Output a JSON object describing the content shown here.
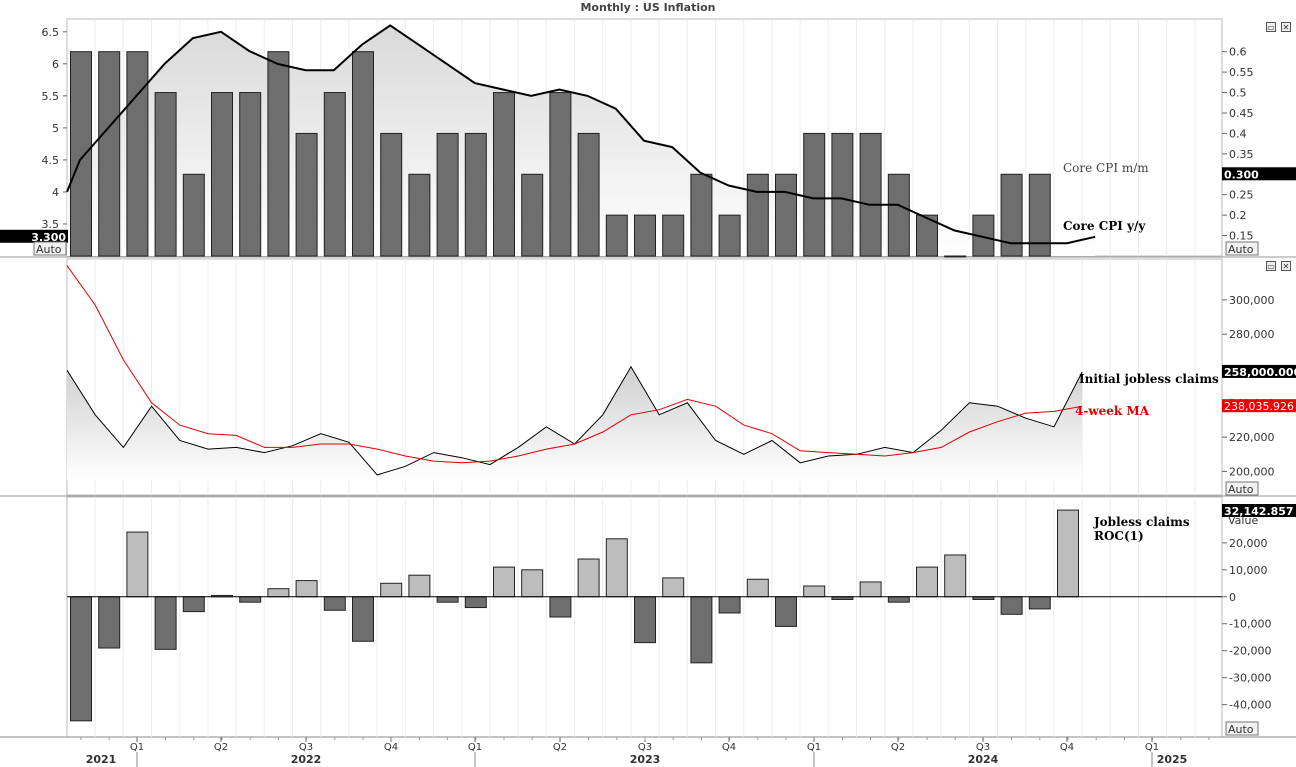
{
  "title": "Monthly : US Inflation",
  "colors": {
    "bar_dark": "#6e6e6e",
    "bar_light": "#bdbdbd",
    "line": "#000000",
    "ma": "#e00000",
    "tag": "#000000",
    "tag_red": "#ee0000"
  },
  "panels": {
    "cpi": {
      "left_axis_ticks": [
        "6.5",
        "6",
        "5.5",
        "5",
        "4.5",
        "4",
        "3.5"
      ],
      "right_axis_ticks": [
        "0.6",
        "0.55",
        "0.5",
        "0.45",
        "0.4",
        "0.35",
        "0.3",
        "0.25",
        "0.2",
        "0.15"
      ],
      "left_tag": "3.300",
      "right_tag": "0.300",
      "auto_left": "Auto",
      "auto_right": "Auto",
      "legend_mm": "Core CPI m/m",
      "legend_yy": "Core CPI y/y"
    },
    "claims": {
      "axis_ticks": [
        "300,000",
        "280,000",
        "240,000",
        "220,000",
        "200,000"
      ],
      "tag_claims": "258,000.000",
      "tag_ma": "238,035.926",
      "auto": "Auto",
      "legend_claims": "Initial jobless claims",
      "legend_ma": "4-week MA"
    },
    "roc": {
      "axis_ticks": [
        "20,000",
        "10,000",
        "0",
        "-10,000",
        "-20,000",
        "-30,000",
        "-40,000"
      ],
      "tag": "32,142.857",
      "value_label": "Value",
      "auto": "Auto",
      "legend_line1": "Jobless claims",
      "legend_line2": "ROC(1)"
    }
  },
  "x_axis": {
    "quarters": [
      "Q1",
      "Q2",
      "Q3",
      "Q4",
      "Q1",
      "Q2",
      "Q3",
      "Q4",
      "Q1",
      "Q2",
      "Q3",
      "Q4",
      "Q1"
    ],
    "years": [
      "2021",
      "2022",
      "2023",
      "2024",
      "2025"
    ]
  },
  "chart_data": [
    {
      "type": "bar",
      "title": "Monthly : US Inflation",
      "series": [
        {
          "name": "Core CPI m/m",
          "axis": "right",
          "values": [
            0.6,
            0.6,
            0.6,
            0.5,
            0.3,
            0.5,
            0.5,
            0.6,
            0.4,
            0.5,
            0.6,
            0.4,
            0.3,
            0.4,
            0.4,
            0.5,
            0.3,
            0.5,
            0.4,
            0.2,
            0.2,
            0.2,
            0.3,
            0.2,
            0.3,
            0.3,
            0.4,
            0.4,
            0.4,
            0.3,
            0.2,
            0.1,
            0.2,
            0.3,
            0.3
          ]
        },
        {
          "name": "Core CPI y/y",
          "type": "line",
          "axis": "left",
          "values": [
            4.0,
            4.5,
            5.0,
            5.5,
            6.0,
            6.4,
            6.5,
            6.2,
            6.0,
            5.9,
            5.9,
            6.3,
            6.6,
            6.3,
            6.0,
            5.7,
            5.6,
            5.5,
            5.6,
            5.5,
            5.3,
            4.8,
            4.7,
            4.3,
            4.1,
            4.0,
            4.0,
            3.9,
            3.9,
            3.8,
            3.8,
            3.6,
            3.4,
            3.3,
            3.2,
            3.2,
            3.2,
            3.3
          ]
        }
      ],
      "ylim_left": [
        3.0,
        6.7
      ],
      "ylim_right": [
        0.1,
        0.68
      ]
    },
    {
      "type": "line",
      "series": [
        {
          "name": "Initial jobless claims",
          "values": [
            259000,
            233000,
            214000,
            238000,
            218000,
            213000,
            214000,
            211000,
            215000,
            222000,
            217000,
            198000,
            203000,
            211000,
            208000,
            204000,
            214000,
            226000,
            216000,
            233000,
            261000,
            233000,
            240000,
            218000,
            210000,
            218000,
            205000,
            209000,
            210000,
            214000,
            211000,
            224000,
            240000,
            238000,
            231000,
            226000,
            258000
          ]
        },
        {
          "name": "4-week MA",
          "values": [
            320000,
            297000,
            265000,
            240000,
            227000,
            222000,
            221000,
            214000,
            214000,
            216000,
            216000,
            213000,
            209000,
            206000,
            205000,
            206000,
            209000,
            213000,
            216000,
            223000,
            233000,
            236000,
            242000,
            238000,
            227000,
            222000,
            212000,
            211000,
            210000,
            209000,
            211000,
            214000,
            223000,
            229000,
            234000,
            235000,
            238000
          ]
        }
      ],
      "ylim": [
        195000,
        318000
      ]
    },
    {
      "type": "bar",
      "series": [
        {
          "name": "Jobless claims ROC(1)",
          "values": [
            -46000,
            -19000,
            24000,
            -19500,
            -5500,
            500,
            -2000,
            3000,
            6000,
            -5000,
            -16500,
            5000,
            8000,
            -2000,
            -4000,
            11000,
            10000,
            -7500,
            14000,
            21500,
            -17000,
            7000,
            -24500,
            -6000,
            6500,
            -11000,
            4000,
            -1000,
            5500,
            -2000,
            11000,
            15500,
            -1000,
            -6500,
            -4500,
            32142.857
          ]
        }
      ],
      "ylim": [
        -52000,
        37000
      ]
    }
  ]
}
